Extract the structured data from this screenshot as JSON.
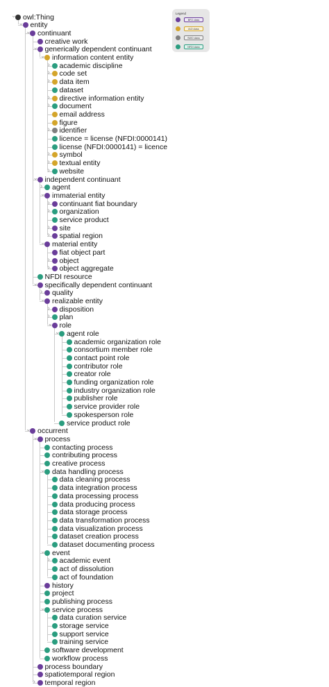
{
  "colors": {
    "root": "#333333",
    "bfo": "#6a3d9a",
    "iao": "#d4a52a",
    "swo": "#7f7f7f",
    "nfdi": "#2a9d7f"
  },
  "legend": {
    "title": "Legend",
    "items": [
      {
        "label": "BFO class",
        "color": "#6a3d9a",
        "badge_bg": "#efe9f7",
        "badge_border": "#6a3d9a"
      },
      {
        "label": "IAO class",
        "color": "#d4a52a",
        "badge_bg": "#fbf3dc",
        "badge_border": "#d4a52a"
      },
      {
        "label": "SWO class",
        "color": "#7f7f7f",
        "badge_bg": "#efefef",
        "badge_border": "#7f7f7f"
      },
      {
        "label": "NFDI class",
        "color": "#2a9d7f",
        "badge_bg": "#dff3ee",
        "badge_border": "#2a9d7f"
      }
    ]
  },
  "tree": [
    {
      "label": "owl:Thing",
      "depth": 0,
      "type": "root",
      "arrow": "open"
    },
    {
      "label": "entity",
      "depth": 1,
      "type": "bfo",
      "arrow": "open"
    },
    {
      "label": "continuant",
      "depth": 2,
      "type": "bfo",
      "arrow": "open"
    },
    {
      "label": "creative work",
      "depth": 3,
      "type": "bfo",
      "arrow": "none"
    },
    {
      "label": "generically dependent continuant",
      "depth": 3,
      "type": "bfo",
      "arrow": "open"
    },
    {
      "label": "information content entity",
      "depth": 4,
      "type": "iao",
      "arrow": "open"
    },
    {
      "label": "academic discipline",
      "depth": 5,
      "type": "nfdi",
      "arrow": "closed"
    },
    {
      "label": "code set",
      "depth": 5,
      "type": "iao",
      "arrow": "closed"
    },
    {
      "label": "data item",
      "depth": 5,
      "type": "iao",
      "arrow": "closed"
    },
    {
      "label": "dataset",
      "depth": 5,
      "type": "nfdi",
      "arrow": "none"
    },
    {
      "label": "directive information entity",
      "depth": 5,
      "type": "iao",
      "arrow": "closed"
    },
    {
      "label": "document",
      "depth": 5,
      "type": "nfdi",
      "arrow": "closed"
    },
    {
      "label": "email address",
      "depth": 5,
      "type": "iao",
      "arrow": "none"
    },
    {
      "label": "figure",
      "depth": 5,
      "type": "iao",
      "arrow": "none"
    },
    {
      "label": "identifier",
      "depth": 5,
      "type": "swo",
      "arrow": "closed"
    },
    {
      "label": "licence = license (NFDI:0000141)",
      "depth": 5,
      "type": "nfdi",
      "arrow": "none"
    },
    {
      "label": "license (NFDI:0000141) = licence",
      "depth": 5,
      "type": "nfdi",
      "arrow": "none"
    },
    {
      "label": "symbol",
      "depth": 5,
      "type": "iao",
      "arrow": "closed"
    },
    {
      "label": "textual entity",
      "depth": 5,
      "type": "iao",
      "arrow": "closed"
    },
    {
      "label": "website",
      "depth": 5,
      "type": "nfdi",
      "arrow": "closed"
    },
    {
      "label": "independent continuant",
      "depth": 3,
      "type": "bfo",
      "arrow": "open"
    },
    {
      "label": "agent",
      "depth": 4,
      "type": "nfdi",
      "arrow": "closed"
    },
    {
      "label": "immaterial entity",
      "depth": 4,
      "type": "bfo",
      "arrow": "open"
    },
    {
      "label": "continuant fiat boundary",
      "depth": 5,
      "type": "bfo",
      "arrow": "closed"
    },
    {
      "label": "organization",
      "depth": 5,
      "type": "nfdi",
      "arrow": "closed"
    },
    {
      "label": "service product",
      "depth": 5,
      "type": "nfdi",
      "arrow": "none"
    },
    {
      "label": "site",
      "depth": 5,
      "type": "bfo",
      "arrow": "closed"
    },
    {
      "label": "spatial region",
      "depth": 5,
      "type": "bfo",
      "arrow": "closed"
    },
    {
      "label": "material entity",
      "depth": 4,
      "type": "bfo",
      "arrow": "open"
    },
    {
      "label": "fiat object part",
      "depth": 5,
      "type": "bfo",
      "arrow": "none"
    },
    {
      "label": "object",
      "depth": 5,
      "type": "bfo",
      "arrow": "closed"
    },
    {
      "label": "object aggregate",
      "depth": 5,
      "type": "bfo",
      "arrow": "closed"
    },
    {
      "label": "NFDI resource",
      "depth": 3,
      "type": "nfdi",
      "arrow": "none"
    },
    {
      "label": "specifically dependent continuant",
      "depth": 3,
      "type": "bfo",
      "arrow": "open"
    },
    {
      "label": "quality",
      "depth": 4,
      "type": "bfo",
      "arrow": "closed"
    },
    {
      "label": "realizable entity",
      "depth": 4,
      "type": "bfo",
      "arrow": "open"
    },
    {
      "label": "disposition",
      "depth": 5,
      "type": "bfo",
      "arrow": "closed"
    },
    {
      "label": "plan",
      "depth": 5,
      "type": "nfdi",
      "arrow": "closed"
    },
    {
      "label": "role",
      "depth": 5,
      "type": "bfo",
      "arrow": "open"
    },
    {
      "label": "agent role",
      "depth": 6,
      "type": "nfdi",
      "arrow": "open"
    },
    {
      "label": "academic organization role",
      "depth": 7,
      "type": "nfdi",
      "arrow": "none"
    },
    {
      "label": "consortium member role",
      "depth": 7,
      "type": "nfdi",
      "arrow": "none"
    },
    {
      "label": "contact point role",
      "depth": 7,
      "type": "nfdi",
      "arrow": "none"
    },
    {
      "label": "contributor role",
      "depth": 7,
      "type": "nfdi",
      "arrow": "none"
    },
    {
      "label": "creator role",
      "depth": 7,
      "type": "nfdi",
      "arrow": "none"
    },
    {
      "label": "funding organization role",
      "depth": 7,
      "type": "nfdi",
      "arrow": "none"
    },
    {
      "label": "industry organization role",
      "depth": 7,
      "type": "nfdi",
      "arrow": "none"
    },
    {
      "label": "publisher role",
      "depth": 7,
      "type": "nfdi",
      "arrow": "none"
    },
    {
      "label": "service provider role",
      "depth": 7,
      "type": "nfdi",
      "arrow": "none"
    },
    {
      "label": "spokesperson role",
      "depth": 7,
      "type": "nfdi",
      "arrow": "none"
    },
    {
      "label": "service product role",
      "depth": 6,
      "type": "nfdi",
      "arrow": "none"
    },
    {
      "label": "occurrent",
      "depth": 2,
      "type": "bfo",
      "arrow": "open"
    },
    {
      "label": "process",
      "depth": 3,
      "type": "bfo",
      "arrow": "open"
    },
    {
      "label": "contacting process",
      "depth": 4,
      "type": "nfdi",
      "arrow": "none"
    },
    {
      "label": "contributing process",
      "depth": 4,
      "type": "nfdi",
      "arrow": "none"
    },
    {
      "label": "creative process",
      "depth": 4,
      "type": "nfdi",
      "arrow": "none"
    },
    {
      "label": "data handling process",
      "depth": 4,
      "type": "nfdi",
      "arrow": "open"
    },
    {
      "label": "data cleaning process",
      "depth": 5,
      "type": "nfdi",
      "arrow": "none"
    },
    {
      "label": "data integration process",
      "depth": 5,
      "type": "nfdi",
      "arrow": "none"
    },
    {
      "label": "data processing process",
      "depth": 5,
      "type": "nfdi",
      "arrow": "none"
    },
    {
      "label": "data producing process",
      "depth": 5,
      "type": "nfdi",
      "arrow": "none"
    },
    {
      "label": "data storage process",
      "depth": 5,
      "type": "nfdi",
      "arrow": "none"
    },
    {
      "label": "data transformation process",
      "depth": 5,
      "type": "nfdi",
      "arrow": "none"
    },
    {
      "label": "data visualization process",
      "depth": 5,
      "type": "nfdi",
      "arrow": "none"
    },
    {
      "label": "dataset creation process",
      "depth": 5,
      "type": "nfdi",
      "arrow": "none"
    },
    {
      "label": "dataset documenting process",
      "depth": 5,
      "type": "nfdi",
      "arrow": "none"
    },
    {
      "label": "event",
      "depth": 4,
      "type": "nfdi",
      "arrow": "open"
    },
    {
      "label": "academic event",
      "depth": 5,
      "type": "nfdi",
      "arrow": "closed"
    },
    {
      "label": "act of dissolution",
      "depth": 5,
      "type": "nfdi",
      "arrow": "none"
    },
    {
      "label": "act of foundation",
      "depth": 5,
      "type": "nfdi",
      "arrow": "none"
    },
    {
      "label": "history",
      "depth": 4,
      "type": "bfo",
      "arrow": "none"
    },
    {
      "label": "project",
      "depth": 4,
      "type": "nfdi",
      "arrow": "none"
    },
    {
      "label": "publishing process",
      "depth": 4,
      "type": "nfdi",
      "arrow": "none"
    },
    {
      "label": "service process",
      "depth": 4,
      "type": "nfdi",
      "arrow": "open"
    },
    {
      "label": "data curation service",
      "depth": 5,
      "type": "nfdi",
      "arrow": "none"
    },
    {
      "label": "storage service",
      "depth": 5,
      "type": "nfdi",
      "arrow": "none"
    },
    {
      "label": "support service",
      "depth": 5,
      "type": "nfdi",
      "arrow": "none"
    },
    {
      "label": "training service",
      "depth": 5,
      "type": "nfdi",
      "arrow": "none"
    },
    {
      "label": "software development",
      "depth": 4,
      "type": "nfdi",
      "arrow": "none"
    },
    {
      "label": "workflow process",
      "depth": 4,
      "type": "nfdi",
      "arrow": "none"
    },
    {
      "label": "process boundary",
      "depth": 3,
      "type": "bfo",
      "arrow": "none"
    },
    {
      "label": "spatiotemporal region",
      "depth": 3,
      "type": "bfo",
      "arrow": "none"
    },
    {
      "label": "temporal region",
      "depth": 3,
      "type": "bfo",
      "arrow": "closed"
    }
  ]
}
